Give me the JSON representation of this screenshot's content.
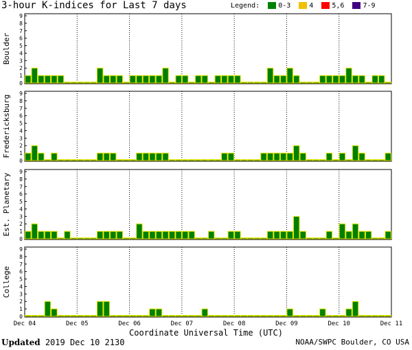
{
  "title": "3-hour K-indices for Last 7 days",
  "legend": {
    "label": "Legend:",
    "items": [
      {
        "label": "0-3",
        "color": "#008000"
      },
      {
        "label": "4",
        "color": "#f0c000"
      },
      {
        "label": "5,6",
        "color": "#ff0000"
      },
      {
        "label": "7-9",
        "color": "#400080"
      }
    ]
  },
  "xlabel": "Coordinate Universal Time (UTC)",
  "footer": {
    "updated_label": "Updated",
    "updated_value": "2019 Dec 10 2130",
    "credit": "NOAA/SWPC Boulder, CO USA"
  },
  "chart_data": {
    "type": "bar",
    "x_ticks": [
      "Dec 04",
      "Dec 05",
      "Dec 06",
      "Dec 07",
      "Dec 08",
      "Dec 09",
      "Dec 10",
      "Dec 11"
    ],
    "y_ticks": [
      "0",
      "1",
      "2",
      "3",
      "4",
      "5",
      "6",
      "7",
      "8",
      "9"
    ],
    "ylim": [
      0,
      9
    ],
    "bars_per_day": 8,
    "grid": "dotted vertical at day boundaries",
    "panels": [
      {
        "name": "Boulder",
        "values": [
          1,
          2,
          1,
          1,
          1,
          1,
          0,
          0,
          0,
          0,
          0,
          2,
          1,
          1,
          1,
          0,
          1,
          1,
          1,
          1,
          1,
          2,
          0,
          1,
          1,
          0,
          1,
          1,
          0,
          1,
          1,
          1,
          1,
          0,
          0,
          0,
          0,
          2,
          1,
          1,
          2,
          1,
          0,
          0,
          0,
          1,
          1,
          1,
          1,
          2,
          1,
          1,
          0,
          1,
          1,
          0
        ]
      },
      {
        "name": "Fredericksburg",
        "values": [
          1,
          2,
          1,
          0,
          1,
          0,
          0,
          0,
          0,
          0,
          0,
          1,
          1,
          1,
          0,
          0,
          0,
          1,
          1,
          1,
          1,
          1,
          0,
          0,
          0,
          0,
          0,
          0,
          0,
          0,
          1,
          1,
          0,
          0,
          0,
          0,
          1,
          1,
          1,
          1,
          1,
          2,
          1,
          0,
          0,
          0,
          1,
          0,
          1,
          0,
          2,
          1,
          0,
          0,
          0,
          1
        ]
      },
      {
        "name": "Est. Planetary",
        "values": [
          1,
          2,
          1,
          1,
          1,
          0,
          1,
          0,
          0,
          0,
          0,
          1,
          1,
          1,
          1,
          0,
          0,
          2,
          1,
          1,
          1,
          1,
          1,
          1,
          1,
          1,
          0,
          0,
          1,
          0,
          0,
          1,
          1,
          0,
          0,
          0,
          0,
          1,
          1,
          1,
          1,
          3,
          1,
          0,
          0,
          0,
          1,
          0,
          2,
          1,
          2,
          1,
          1,
          0,
          0,
          1
        ]
      },
      {
        "name": "College",
        "values": [
          0,
          0,
          0,
          2,
          1,
          0,
          0,
          0,
          0,
          0,
          0,
          2,
          2,
          0,
          0,
          0,
          0,
          0,
          0,
          1,
          1,
          0,
          0,
          0,
          0,
          0,
          0,
          1,
          0,
          0,
          0,
          0,
          0,
          0,
          0,
          0,
          0,
          0,
          0,
          0,
          1,
          0,
          0,
          0,
          0,
          1,
          0,
          0,
          0,
          1,
          2,
          0,
          0,
          0,
          0,
          0
        ]
      }
    ]
  }
}
